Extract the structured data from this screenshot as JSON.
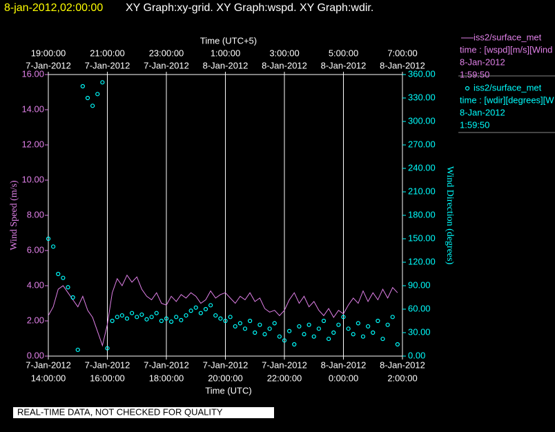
{
  "chart_data": {
    "type": "line",
    "title_time": "8-jan-2012,02:00:00",
    "title": "XY Graph:xy-grid.  XY Graph:wspd.  XY Graph:wdir.",
    "xlabel": "Time (UTC)",
    "x2label": "Time (UTC+5)",
    "ylabel": "Wind Speed (m/s)",
    "y2label": "Wind Direction (degrees)",
    "footnote": "REAL-TIME DATA, NOT CHECKED FOR QUALITY",
    "grid": true,
    "xlim": [
      "2012-01-07T14:00:00",
      "2012-01-08T02:00:00"
    ],
    "xticks": [
      {
        "value": "2012-01-07T14:00:00",
        "label": "7-Jan-2012",
        "time_label": "14:00:00"
      },
      {
        "value": "2012-01-07T16:00:00",
        "label": "7-Jan-2012",
        "time_label": "16:00:00"
      },
      {
        "value": "2012-01-07T18:00:00",
        "label": "7-Jan-2012",
        "time_label": "18:00:00"
      },
      {
        "value": "2012-01-07T20:00:00",
        "label": "7-Jan-2012",
        "time_label": "20:00:00"
      },
      {
        "value": "2012-01-07T22:00:00",
        "label": "7-Jan-2012",
        "time_label": "22:00:00"
      },
      {
        "value": "2012-01-08T00:00:00",
        "label": "8-Jan-2012",
        "time_label": "0:00:00"
      },
      {
        "value": "2012-01-08T02:00:00",
        "label": "8-Jan-2012",
        "time_label": "2:00:00"
      }
    ],
    "x2lim": [
      "2012-01-07T19:00:00",
      "2012-01-08T07:00:00"
    ],
    "x2ticks": [
      {
        "value": "2012-01-07T19:00:00",
        "label": "19:00:00",
        "date_label": "7-Jan-2012"
      },
      {
        "value": "2012-01-07T21:00:00",
        "label": "21:00:00",
        "date_label": "7-Jan-2012"
      },
      {
        "value": "2012-01-07T23:00:00",
        "label": "23:00:00",
        "date_label": "7-Jan-2012"
      },
      {
        "value": "2012-01-08T01:00:00",
        "label": "1:00:00",
        "date_label": "8-Jan-2012"
      },
      {
        "value": "2012-01-08T03:00:00",
        "label": "3:00:00",
        "date_label": "8-Jan-2012"
      },
      {
        "value": "2012-01-08T05:00:00",
        "label": "5:00:00",
        "date_label": "8-Jan-2012"
      },
      {
        "value": "2012-01-08T07:00:00",
        "label": "7:00:00",
        "date_label": "8-Jan-2012"
      }
    ],
    "ylim": [
      0,
      16
    ],
    "yticks": [
      {
        "value": 0,
        "label": "0.00"
      },
      {
        "value": 2,
        "label": "2.00"
      },
      {
        "value": 4,
        "label": "4.00"
      },
      {
        "value": 6,
        "label": "6.00"
      },
      {
        "value": 8,
        "label": "8.00"
      },
      {
        "value": 10,
        "label": "10.00"
      },
      {
        "value": 12,
        "label": "12.00"
      },
      {
        "value": 14,
        "label": "14.00"
      },
      {
        "value": 16,
        "label": "16.00"
      }
    ],
    "y2lim": [
      0,
      360
    ],
    "y2ticks": [
      {
        "value": 0,
        "label": "0.00"
      },
      {
        "value": 30,
        "label": "30.00"
      },
      {
        "value": 60,
        "label": "60.00"
      },
      {
        "value": 90,
        "label": "90.00"
      },
      {
        "value": 120,
        "label": "120.00"
      },
      {
        "value": 150,
        "label": "150.00"
      },
      {
        "value": 180,
        "label": "180.00"
      },
      {
        "value": 210,
        "label": "210.00"
      },
      {
        "value": 240,
        "label": "240.00"
      },
      {
        "value": 270,
        "label": "270.00"
      },
      {
        "value": 300,
        "label": "300.00"
      },
      {
        "value": 330,
        "label": "330.00"
      },
      {
        "value": 360,
        "label": "360.00"
      }
    ],
    "x": [
      "2012-01-07T14:00:00",
      "2012-01-07T14:10:00",
      "2012-01-07T14:20:00",
      "2012-01-07T14:30:00",
      "2012-01-07T14:40:00",
      "2012-01-07T14:50:00",
      "2012-01-07T15:00:00",
      "2012-01-07T15:10:00",
      "2012-01-07T15:20:00",
      "2012-01-07T15:30:00",
      "2012-01-07T15:40:00",
      "2012-01-07T15:50:00",
      "2012-01-07T16:00:00",
      "2012-01-07T16:10:00",
      "2012-01-07T16:20:00",
      "2012-01-07T16:30:00",
      "2012-01-07T16:40:00",
      "2012-01-07T16:50:00",
      "2012-01-07T17:00:00",
      "2012-01-07T17:10:00",
      "2012-01-07T17:20:00",
      "2012-01-07T17:30:00",
      "2012-01-07T17:40:00",
      "2012-01-07T17:50:00",
      "2012-01-07T18:00:00",
      "2012-01-07T18:10:00",
      "2012-01-07T18:20:00",
      "2012-01-07T18:30:00",
      "2012-01-07T18:40:00",
      "2012-01-07T18:50:00",
      "2012-01-07T19:00:00",
      "2012-01-07T19:10:00",
      "2012-01-07T19:20:00",
      "2012-01-07T19:30:00",
      "2012-01-07T19:40:00",
      "2012-01-07T19:50:00",
      "2012-01-07T20:00:00",
      "2012-01-07T20:10:00",
      "2012-01-07T20:20:00",
      "2012-01-07T20:30:00",
      "2012-01-07T20:40:00",
      "2012-01-07T20:50:00",
      "2012-01-07T21:00:00",
      "2012-01-07T21:10:00",
      "2012-01-07T21:20:00",
      "2012-01-07T21:30:00",
      "2012-01-07T21:40:00",
      "2012-01-07T21:50:00",
      "2012-01-07T22:00:00",
      "2012-01-07T22:10:00",
      "2012-01-07T22:20:00",
      "2012-01-07T22:30:00",
      "2012-01-07T22:40:00",
      "2012-01-07T22:50:00",
      "2012-01-07T23:00:00",
      "2012-01-07T23:10:00",
      "2012-01-07T23:20:00",
      "2012-01-07T23:30:00",
      "2012-01-07T23:40:00",
      "2012-01-07T23:50:00",
      "2012-01-08T00:00:00",
      "2012-01-08T00:10:00",
      "2012-01-08T00:20:00",
      "2012-01-08T00:30:00",
      "2012-01-08T00:40:00",
      "2012-01-08T00:50:00",
      "2012-01-08T01:00:00",
      "2012-01-08T01:10:00",
      "2012-01-08T01:20:00",
      "2012-01-08T01:30:00",
      "2012-01-08T01:40:00",
      "2012-01-08T01:50:00"
    ],
    "series": [
      {
        "name": "iss2/surface_met",
        "type": "line",
        "color": "#e080e8",
        "detail": [
          "time : [wspd][m/s][Wind",
          "8-Jan-2012",
          "1:59:50"
        ],
        "values": [
          2.3,
          2.8,
          3.8,
          4.0,
          3.6,
          3.2,
          2.8,
          3.4,
          2.6,
          2.2,
          1.4,
          0.6,
          1.8,
          3.6,
          4.4,
          4.0,
          4.6,
          4.2,
          4.5,
          3.8,
          3.4,
          3.2,
          3.6,
          3.0,
          2.9,
          3.4,
          3.1,
          3.5,
          3.3,
          3.6,
          3.4,
          3.0,
          3.2,
          3.7,
          3.3,
          3.5,
          3.6,
          3.3,
          3.0,
          3.4,
          3.2,
          3.6,
          3.1,
          3.3,
          2.7,
          2.5,
          2.6,
          2.3,
          2.6,
          3.2,
          3.6,
          3.0,
          3.4,
          2.8,
          3.1,
          2.6,
          2.3,
          2.7,
          2.2,
          2.6,
          2.4,
          2.9,
          3.3,
          3.0,
          3.7,
          3.1,
          3.6,
          3.2,
          3.8,
          3.3,
          3.9,
          3.6
        ]
      },
      {
        "name": "iss2/surface_met",
        "type": "scatter",
        "axis": "y2",
        "color": "#00ffff",
        "detail": [
          "time : [wdir][degrees][W",
          "8-Jan-2012",
          "1:59:50"
        ],
        "values": [
          150,
          140,
          105,
          100,
          88,
          75,
          8,
          345,
          330,
          320,
          335,
          350,
          10,
          45,
          50,
          52,
          48,
          55,
          50,
          53,
          47,
          50,
          55,
          45,
          48,
          44,
          50,
          46,
          52,
          58,
          62,
          55,
          60,
          65,
          52,
          48,
          45,
          50,
          38,
          42,
          35,
          45,
          30,
          40,
          28,
          35,
          42,
          25,
          20,
          32,
          15,
          38,
          28,
          40,
          25,
          35,
          45,
          22,
          30,
          40,
          50,
          35,
          28,
          42,
          25,
          38,
          30,
          45,
          22,
          40,
          50,
          15
        ]
      }
    ]
  }
}
